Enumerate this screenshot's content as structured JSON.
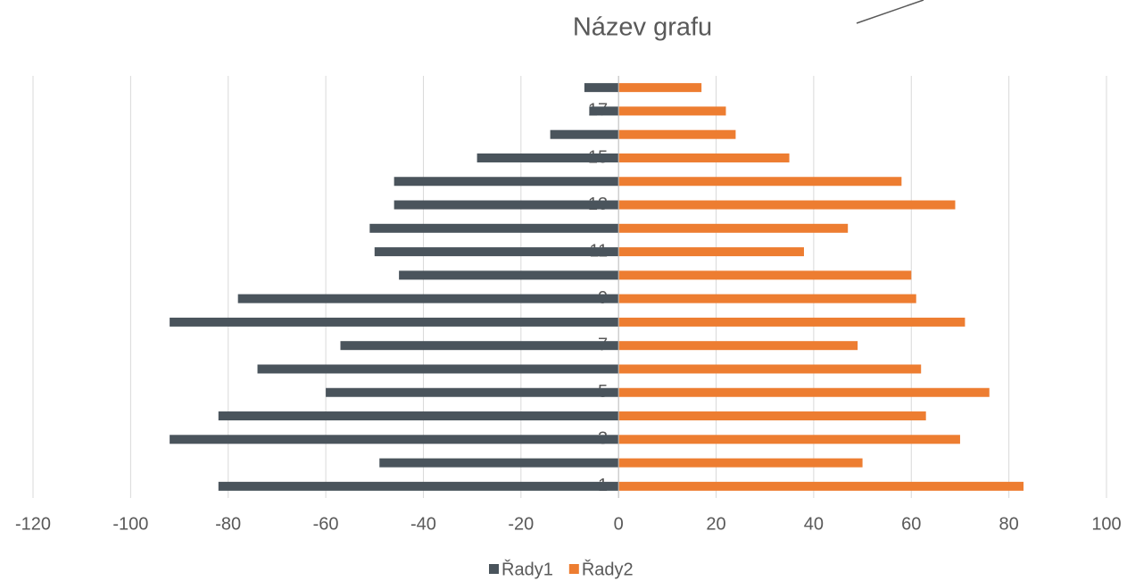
{
  "chart_data": {
    "type": "bar",
    "orientation": "horizontal",
    "title": "Název grafu",
    "categories": [
      "1",
      null,
      "3",
      null,
      "5",
      null,
      "7",
      null,
      "9",
      null,
      "11",
      null,
      "13",
      null,
      "15",
      null,
      "17",
      null
    ],
    "series": [
      {
        "name": "Řady1",
        "color": "#4a545c",
        "values": [
          -82,
          -49,
          -92,
          -82,
          -60,
          -74,
          -57,
          -92,
          -78,
          -45,
          -50,
          -51,
          -46,
          -46,
          -29,
          -14,
          -6,
          -7
        ]
      },
      {
        "name": "Řady2",
        "color": "#ed7d31",
        "values": [
          83,
          50,
          70,
          63,
          76,
          62,
          49,
          71,
          61,
          60,
          38,
          47,
          69,
          58,
          35,
          24,
          22,
          17
        ]
      }
    ],
    "xlim": [
      -120,
      100
    ],
    "xticks": [
      -120,
      -100,
      -80,
      -60,
      -40,
      -20,
      0,
      20,
      40,
      60,
      80,
      100
    ],
    "grid": true,
    "legend": "bottom"
  }
}
